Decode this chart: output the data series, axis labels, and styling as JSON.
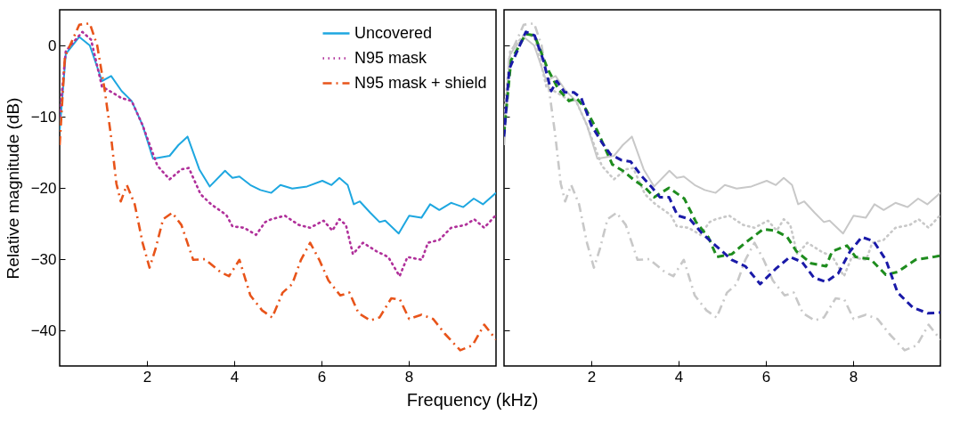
{
  "chart_data": [
    {
      "type": "line",
      "ylabel": "Relative magnitude (dB)",
      "xlabel": "Frequency (kHz)",
      "xlim": [
        0,
        10
      ],
      "xticks": [
        2,
        4,
        6,
        8
      ],
      "ylim": [
        -45,
        5
      ],
      "yticks": [
        -40,
        -30,
        -20,
        -10,
        0
      ],
      "legend": "top right",
      "series": [
        {
          "name": "Uncovered",
          "color": "#1ea7e0",
          "line_style": "solid",
          "x": [
            0,
            0.14,
            0.45,
            0.69,
            0.97,
            1.18,
            1.42,
            1.65,
            1.9,
            2.14,
            2.52,
            2.72,
            2.93,
            3.2,
            3.44,
            3.79,
            3.96,
            4.12,
            4.37,
            4.6,
            4.85,
            5.06,
            5.33,
            5.67,
            6.02,
            6.23,
            6.41,
            6.6,
            6.74,
            6.88,
            7.12,
            7.33,
            7.46,
            7.77,
            8.01,
            8.29,
            8.49,
            8.7,
            8.97,
            9.25,
            9.49,
            9.7,
            10
          ],
          "values": [
            -12,
            -1.2,
            1.2,
            0,
            -5,
            -4.3,
            -6.4,
            -7.8,
            -11.2,
            -15.9,
            -15.5,
            -14,
            -12.8,
            -17.4,
            -19.8,
            -17.6,
            -18.6,
            -18.4,
            -19.6,
            -20.3,
            -20.7,
            -19.6,
            -20.1,
            -19.8,
            -19,
            -19.6,
            -18.6,
            -19.6,
            -22.3,
            -21.9,
            -23.5,
            -24.8,
            -24.6,
            -26.4,
            -23.9,
            -24.2,
            -22.3,
            -23.1,
            -22.1,
            -22.7,
            -21.5,
            -22.3,
            -20.7
          ]
        },
        {
          "name": "N95 mask",
          "color": "#b0309a",
          "line_style": "dotted",
          "x": [
            0,
            0.14,
            0.52,
            0.72,
            0.97,
            1.2,
            1.42,
            1.65,
            1.9,
            2.24,
            2.52,
            2.79,
            2.96,
            3.23,
            3.47,
            3.82,
            3.96,
            4.23,
            4.5,
            4.71,
            4.85,
            5.16,
            5.48,
            5.74,
            6.05,
            6.25,
            6.41,
            6.56,
            6.72,
            6.95,
            7.26,
            7.53,
            7.79,
            7.97,
            8.3,
            8.44,
            8.7,
            8.97,
            9.3,
            9.5,
            9.73,
            10
          ],
          "values": [
            -10,
            -0.8,
            1.9,
            0.8,
            -5.8,
            -6.6,
            -7.4,
            -7.8,
            -11.2,
            -16.9,
            -18.8,
            -17.4,
            -17.2,
            -20.9,
            -22.3,
            -23.8,
            -25.4,
            -25.6,
            -26.6,
            -24.8,
            -24.4,
            -23.9,
            -25.2,
            -25.6,
            -24.6,
            -26,
            -24.4,
            -25.2,
            -29.3,
            -27.7,
            -28.9,
            -29.7,
            -32.4,
            -29.7,
            -30.1,
            -27.7,
            -27.3,
            -25.6,
            -25.2,
            -24.4,
            -25.6,
            -23.8
          ]
        },
        {
          "name": "N95 mask + shield",
          "color": "#e8541a",
          "line_style": "dashdot",
          "x": [
            0,
            0.12,
            0.45,
            0.69,
            0.86,
            1.03,
            1.17,
            1.3,
            1.4,
            1.54,
            1.72,
            1.9,
            2.06,
            2.2,
            2.37,
            2.58,
            2.79,
            3.06,
            3.33,
            3.68,
            3.88,
            4.12,
            4.37,
            4.64,
            4.87,
            5.11,
            5.33,
            5.53,
            5.74,
            5.95,
            6.16,
            6.43,
            6.64,
            6.85,
            7.12,
            7.33,
            7.6,
            7.8,
            8.01,
            8.29,
            8.56,
            8.83,
            9.18,
            9.46,
            9.73,
            10
          ],
          "values": [
            -14,
            -1.6,
            2.9,
            3.1,
            0,
            -6.2,
            -12.4,
            -19.4,
            -21.9,
            -19.6,
            -22.3,
            -27.7,
            -31.2,
            -28.5,
            -24.4,
            -23.5,
            -25.2,
            -30.1,
            -30,
            -31.8,
            -32.4,
            -30.1,
            -35.1,
            -37.2,
            -38.2,
            -34.7,
            -33.5,
            -30.1,
            -27.7,
            -30.1,
            -33,
            -35.1,
            -34.7,
            -37.6,
            -38.6,
            -38.2,
            -35.5,
            -35.7,
            -38.4,
            -37.8,
            -38.4,
            -40.5,
            -42.8,
            -42.1,
            -39.2,
            -41.3
          ]
        }
      ]
    },
    {
      "type": "line",
      "xlim": [
        0,
        10
      ],
      "xticks": [
        2,
        4,
        6,
        8
      ],
      "ylim": [
        -45,
        5
      ],
      "yticks": [
        -40,
        -30,
        -20,
        -10,
        0
      ],
      "tick_labels": "x",
      "series": [
        {
          "color": "#c8c8c8",
          "line_style": "solid",
          "x": [
            0,
            0.14,
            0.45,
            0.69,
            0.97,
            1.18,
            1.42,
            1.65,
            1.9,
            2.14,
            2.52,
            2.72,
            2.93,
            3.2,
            3.44,
            3.79,
            3.96,
            4.12,
            4.37,
            4.6,
            4.85,
            5.06,
            5.33,
            5.67,
            6.02,
            6.23,
            6.41,
            6.6,
            6.74,
            6.88,
            7.12,
            7.33,
            7.46,
            7.77,
            8.01,
            8.29,
            8.49,
            8.7,
            8.97,
            9.25,
            9.49,
            9.7,
            10
          ],
          "values": [
            -12,
            -1.2,
            1.2,
            0,
            -5,
            -4.3,
            -6.4,
            -7.8,
            -11.2,
            -15.9,
            -15.5,
            -14,
            -12.8,
            -17.4,
            -19.8,
            -17.6,
            -18.6,
            -18.4,
            -19.6,
            -20.3,
            -20.7,
            -19.6,
            -20.1,
            -19.8,
            -19,
            -19.6,
            -18.6,
            -19.6,
            -22.3,
            -21.9,
            -23.5,
            -24.8,
            -24.6,
            -26.4,
            -23.9,
            -24.2,
            -22.3,
            -23.1,
            -22.1,
            -22.7,
            -21.5,
            -22.3,
            -20.7
          ]
        },
        {
          "color": "#c8c8c8",
          "line_style": "dotted",
          "x": [
            0,
            0.14,
            0.52,
            0.72,
            0.97,
            1.2,
            1.42,
            1.65,
            1.9,
            2.24,
            2.52,
            2.79,
            2.96,
            3.23,
            3.47,
            3.82,
            3.96,
            4.23,
            4.5,
            4.71,
            4.85,
            5.16,
            5.48,
            5.74,
            6.05,
            6.25,
            6.41,
            6.56,
            6.72,
            6.95,
            7.26,
            7.53,
            7.79,
            7.97,
            8.3,
            8.44,
            8.7,
            8.97,
            9.3,
            9.5,
            9.73,
            10
          ],
          "values": [
            -10,
            -0.8,
            1.9,
            0.8,
            -5.8,
            -6.6,
            -7.4,
            -7.8,
            -11.2,
            -16.9,
            -18.8,
            -17.4,
            -17.2,
            -20.9,
            -22.3,
            -23.8,
            -25.4,
            -25.6,
            -26.6,
            -24.8,
            -24.4,
            -23.9,
            -25.2,
            -25.6,
            -24.6,
            -26,
            -24.4,
            -25.2,
            -29.3,
            -27.7,
            -28.9,
            -29.7,
            -32.4,
            -29.7,
            -30.1,
            -27.7,
            -27.3,
            -25.6,
            -25.2,
            -24.4,
            -25.6,
            -23.8
          ]
        },
        {
          "color": "#c8c8c8",
          "line_style": "dashdot",
          "x": [
            0,
            0.12,
            0.45,
            0.69,
            0.86,
            1.03,
            1.17,
            1.3,
            1.4,
            1.54,
            1.72,
            1.9,
            2.06,
            2.2,
            2.37,
            2.58,
            2.79,
            3.06,
            3.33,
            3.68,
            3.88,
            4.12,
            4.37,
            4.64,
            4.87,
            5.11,
            5.33,
            5.53,
            5.74,
            5.95,
            6.16,
            6.43,
            6.64,
            6.85,
            7.12,
            7.33,
            7.6,
            7.8,
            8.01,
            8.29,
            8.56,
            8.83,
            9.18,
            9.46,
            9.73,
            10
          ],
          "values": [
            -14,
            -1.6,
            2.9,
            3.1,
            0,
            -6.2,
            -12.4,
            -19.4,
            -21.9,
            -19.6,
            -22.3,
            -27.7,
            -31.2,
            -28.5,
            -24.4,
            -23.5,
            -25.2,
            -30.1,
            -30,
            -31.8,
            -32.4,
            -30.1,
            -35.1,
            -37.2,
            -38.2,
            -34.7,
            -33.5,
            -30.1,
            -27.7,
            -30.1,
            -33,
            -35.1,
            -34.7,
            -37.6,
            -38.6,
            -38.2,
            -35.5,
            -35.7,
            -38.4,
            -37.8,
            -38.4,
            -40.5,
            -42.8,
            -42.1,
            -39.2,
            -41.3
          ]
        },
        {
          "color": "#1e8c1e",
          "line_style": "dashed",
          "x": [
            0,
            0.16,
            0.5,
            0.7,
            1.0,
            1.25,
            1.49,
            1.66,
            1.87,
            2.14,
            2.48,
            2.75,
            2.96,
            3.24,
            3.44,
            3.78,
            4.13,
            4.4,
            4.68,
            4.88,
            5.22,
            5.53,
            5.94,
            6.22,
            6.49,
            6.7,
            7.04,
            7.38,
            7.52,
            7.86,
            8.06,
            8.4,
            8.75,
            9.02,
            9.43,
            9.84,
            10
          ],
          "values": [
            -12.4,
            -2.1,
            1.6,
            1.4,
            -3.3,
            -6.2,
            -7.8,
            -7.4,
            -8.9,
            -12,
            -16.7,
            -17.7,
            -18.8,
            -20,
            -21.3,
            -20,
            -21.5,
            -24.8,
            -26.9,
            -29.7,
            -29.3,
            -27.7,
            -25.8,
            -26,
            -26.9,
            -28.9,
            -30.6,
            -31,
            -28.9,
            -28.1,
            -29.7,
            -30,
            -32.2,
            -31.8,
            -30.1,
            -29.7,
            -29.5
          ]
        },
        {
          "color": "#1a1aa8",
          "line_style": "dashed",
          "x": [
            0,
            0.12,
            0.5,
            0.7,
            0.9,
            1.08,
            1.21,
            1.39,
            1.6,
            1.77,
            2.0,
            2.24,
            2.44,
            2.69,
            2.9,
            3.16,
            3.37,
            3.57,
            3.78,
            3.98,
            4.26,
            4.54,
            4.74,
            4.85,
            5.22,
            5.53,
            5.87,
            6.22,
            6.55,
            6.83,
            7.1,
            7.38,
            7.66,
            7.93,
            8.2,
            8.47,
            8.75,
            9.02,
            9.37,
            9.71,
            10
          ],
          "values": [
            -12.8,
            -3.3,
            1.9,
            1.4,
            -2.1,
            -6.4,
            -5,
            -6.6,
            -6.6,
            -7.4,
            -11.2,
            -13.6,
            -15.3,
            -16.1,
            -16.3,
            -18.4,
            -19.8,
            -21.3,
            -21.3,
            -23.9,
            -24.4,
            -26.4,
            -27.5,
            -28.1,
            -30.1,
            -31,
            -33.5,
            -31.4,
            -29.7,
            -30.4,
            -32.6,
            -33.2,
            -32,
            -28.9,
            -26.9,
            -27.5,
            -30.1,
            -34.7,
            -36.8,
            -37.6,
            -37.5
          ]
        }
      ]
    }
  ]
}
